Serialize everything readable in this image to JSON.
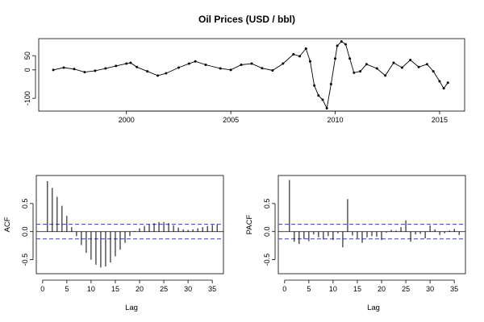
{
  "chart_data": [
    {
      "type": "line",
      "title": "Oil Prices (USD / bbl)",
      "xlabel": "",
      "ylabel": "",
      "xlim": [
        1995.8,
        2016.2
      ],
      "ylim": [
        -145,
        110
      ],
      "x_ticks": [
        2000,
        2005,
        2010,
        2015
      ],
      "x_tick_labels": [
        "2000",
        "2005",
        "2010",
        "2015"
      ],
      "y_ticks": [
        -100,
        0,
        50
      ],
      "y_tick_labels": [
        "-100",
        "0",
        "50"
      ],
      "grid": false,
      "markers": "filled circles",
      "series": [
        {
          "x": [
            1996.5,
            1997.0,
            1997.5,
            1998.0,
            1998.5,
            1999.0,
            1999.5,
            2000.0,
            2000.2,
            2000.5,
            2001.0,
            2001.5,
            2001.9,
            2002.5,
            2003.0,
            2003.3,
            2003.8,
            2004.5,
            2005.0,
            2005.5,
            2006.0,
            2006.5,
            2007.0,
            2007.5,
            2008.0,
            2008.3,
            2008.6,
            2008.8,
            2009.0,
            2009.2,
            2009.4,
            2009.6,
            2009.8,
            2010.0,
            2010.1,
            2010.3,
            2010.5,
            2010.7,
            2010.9,
            2011.2,
            2011.5,
            2012.0,
            2012.4,
            2012.8,
            2013.2,
            2013.6,
            2014.0,
            2014.4,
            2014.7,
            2015.0,
            2015.2,
            2015.4
          ],
          "y": [
            0,
            8,
            3,
            -8,
            -3,
            5,
            14,
            22,
            25,
            10,
            -5,
            -20,
            -12,
            8,
            22,
            30,
            18,
            5,
            0,
            18,
            22,
            6,
            -2,
            22,
            55,
            48,
            75,
            30,
            -55,
            -90,
            -105,
            -135,
            -50,
            40,
            85,
            100,
            90,
            40,
            -10,
            -5,
            20,
            5,
            -20,
            25,
            8,
            35,
            10,
            20,
            -5,
            -40,
            -65,
            -45
          ]
        }
      ]
    },
    {
      "type": "bar",
      "title": "",
      "xlabel": "Lag",
      "ylabel": "ACF",
      "xlim": [
        -1.3,
        37.3
      ],
      "ylim": [
        -0.75,
        1.0
      ],
      "x_ticks": [
        0,
        5,
        10,
        15,
        20,
        25,
        30,
        35
      ],
      "x_tick_labels": [
        "0",
        "5",
        "10",
        "15",
        "20",
        "25",
        "30",
        "35"
      ],
      "y_ticks": [
        -0.5,
        0.0,
        0.5
      ],
      "y_tick_labels": [
        "-0.5",
        "0.0",
        "0.5"
      ],
      "confidence_band": [
        0.13,
        -0.13
      ],
      "lags": [
        1,
        2,
        3,
        4,
        5,
        6,
        7,
        8,
        9,
        10,
        11,
        12,
        13,
        14,
        15,
        16,
        17,
        18,
        19,
        20,
        21,
        22,
        23,
        24,
        25,
        26,
        27,
        28,
        29,
        30,
        31,
        32,
        33,
        34,
        35,
        36
      ],
      "values": [
        0.9,
        0.78,
        0.62,
        0.46,
        0.28,
        0.08,
        -0.08,
        -0.24,
        -0.38,
        -0.5,
        -0.59,
        -0.64,
        -0.62,
        -0.55,
        -0.44,
        -0.32,
        -0.2,
        -0.08,
        0.01,
        0.06,
        0.1,
        0.13,
        0.15,
        0.17,
        0.17,
        0.15,
        0.11,
        0.07,
        0.04,
        0.03,
        0.04,
        0.06,
        0.08,
        0.1,
        0.12,
        0.13
      ]
    },
    {
      "type": "bar",
      "title": "",
      "xlabel": "Lag",
      "ylabel": "PACF",
      "xlim": [
        -1.3,
        37.3
      ],
      "ylim": [
        -0.75,
        1.0
      ],
      "x_ticks": [
        0,
        5,
        10,
        15,
        20,
        25,
        30,
        35
      ],
      "x_tick_labels": [
        "0",
        "5",
        "10",
        "15",
        "20",
        "25",
        "30",
        "35"
      ],
      "y_ticks": [
        -0.5,
        0.0,
        0.5
      ],
      "y_tick_labels": [
        "-0.5",
        "0.0",
        "0.5"
      ],
      "confidence_band": [
        0.13,
        -0.13
      ],
      "lags": [
        1,
        2,
        3,
        4,
        5,
        6,
        7,
        8,
        9,
        10,
        11,
        12,
        13,
        14,
        15,
        16,
        17,
        18,
        19,
        20,
        21,
        22,
        23,
        24,
        25,
        26,
        27,
        28,
        29,
        30,
        31,
        32,
        33,
        34,
        35,
        36
      ],
      "values": [
        0.92,
        -0.18,
        -0.22,
        -0.13,
        -0.17,
        -0.05,
        -0.1,
        -0.14,
        -0.08,
        -0.15,
        -0.03,
        -0.28,
        0.58,
        -0.07,
        -0.12,
        -0.2,
        -0.1,
        -0.08,
        -0.09,
        -0.15,
        -0.02,
        0.03,
        0.02,
        0.08,
        0.2,
        -0.18,
        -0.05,
        -0.04,
        -0.12,
        0.11,
        0.04,
        -0.06,
        -0.03,
        0.02,
        0.05,
        -0.06
      ]
    }
  ]
}
